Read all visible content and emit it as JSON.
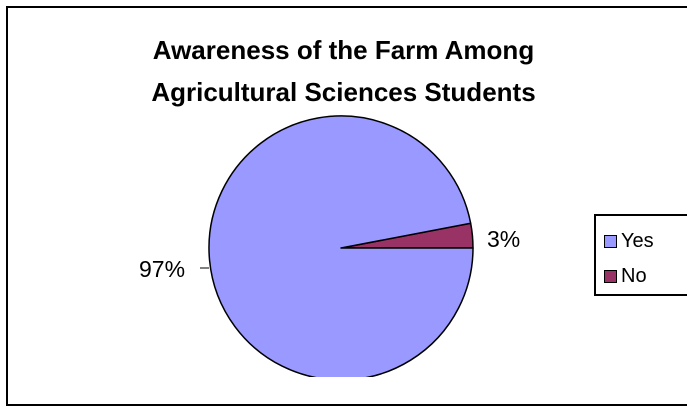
{
  "chart_data": {
    "type": "pie",
    "title": "Awareness of the Farm Among Agricultural Sciences Students",
    "title_lines": [
      "Awareness of the Farm Among",
      "Agricultural Sciences Students"
    ],
    "categories": [
      "Yes",
      "No"
    ],
    "values": [
      97,
      3
    ],
    "labels": [
      "97%",
      "3%"
    ],
    "colors": [
      "#9999ff",
      "#993366"
    ],
    "legend_position": "right",
    "legend": [
      "Yes",
      "No"
    ]
  }
}
